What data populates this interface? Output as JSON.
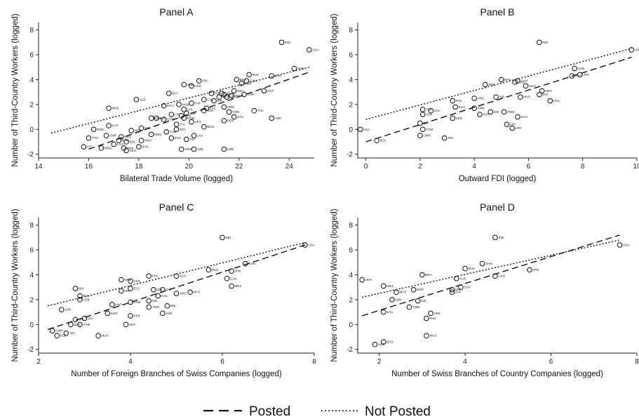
{
  "legend": {
    "posted": "Posted",
    "not_posted": "Not Posted"
  },
  "chart_data": [
    {
      "type": "scatter",
      "title": "Panel A",
      "xlabel": "Bilateral Trade Volume (logged)",
      "ylabel": "Number of Third-Country Workers (logged)",
      "xlim": [
        14,
        25
      ],
      "ylim": [
        -2.3,
        8.6
      ],
      "xticks": [
        14,
        16,
        18,
        20,
        22,
        24
      ],
      "yticks": [
        -2,
        0,
        2,
        4,
        6,
        8
      ],
      "points": [
        {
          "label": "IND",
          "x": 23.7,
          "y": 7.0
        },
        {
          "label": "USA",
          "x": 24.8,
          "y": 6.4
        },
        {
          "label": "CHN",
          "x": 24.2,
          "y": 4.9
        },
        {
          "label": "RUS",
          "x": 22.4,
          "y": 4.4
        },
        {
          "label": "JPN",
          "x": 23.3,
          "y": 4.3
        },
        {
          "label": "SGP",
          "x": 23.0,
          "y": 3.1
        },
        {
          "label": "BRA",
          "x": 21.9,
          "y": 4.0
        },
        {
          "label": "CAN",
          "x": 22.3,
          "y": 3.9
        },
        {
          "label": "AUS",
          "x": 22.1,
          "y": 3.7
        },
        {
          "label": "MEX",
          "x": 21.8,
          "y": 3.1
        },
        {
          "label": "KOR",
          "x": 22.2,
          "y": 2.8
        },
        {
          "label": "PHL",
          "x": 20.4,
          "y": 3.9
        },
        {
          "label": "SRB",
          "x": 19.8,
          "y": 3.6
        },
        {
          "label": "UKR",
          "x": 20.1,
          "y": 3.5
        },
        {
          "label": "BIH",
          "x": 19.2,
          "y": 2.9
        },
        {
          "label": "ALB",
          "x": 17.9,
          "y": 2.4
        },
        {
          "label": "ARG",
          "x": 21.5,
          "y": 2.6
        },
        {
          "label": "COL",
          "x": 20.6,
          "y": 2.4
        },
        {
          "label": "IDN",
          "x": 21.7,
          "y": 2.7
        },
        {
          "label": "MYS",
          "x": 21.4,
          "y": 2.8
        },
        {
          "label": "NZL",
          "x": 21.3,
          "y": 2.9
        },
        {
          "label": "EGY",
          "x": 21.2,
          "y": 2.6
        },
        {
          "label": "PER",
          "x": 20.9,
          "y": 2.9
        },
        {
          "label": "VNM",
          "x": 21.4,
          "y": 1.8
        },
        {
          "label": "ISR",
          "x": 21.0,
          "y": 2.3
        },
        {
          "label": "KAZ",
          "x": 20.7,
          "y": 1.7
        },
        {
          "label": "VEN",
          "x": 20.6,
          "y": 1.5
        },
        {
          "label": "MNE",
          "x": 16.8,
          "y": 1.7
        },
        {
          "label": "ECU",
          "x": 19.0,
          "y": 1.9
        },
        {
          "label": "NAM",
          "x": 19.6,
          "y": 2.0
        },
        {
          "label": "PAK",
          "x": 20.1,
          "y": 2.1
        },
        {
          "label": "TWN",
          "x": 21.6,
          "y": 1.4
        },
        {
          "label": "THA",
          "x": 22.6,
          "y": 1.5
        },
        {
          "label": "SAU",
          "x": 21.8,
          "y": 1.0
        },
        {
          "label": "ARE",
          "x": 23.3,
          "y": 0.9
        },
        {
          "label": "CHL",
          "x": 19.8,
          "y": 1.6
        },
        {
          "label": "JOR",
          "x": 19.9,
          "y": 1.3
        },
        {
          "label": "PAN",
          "x": 19.7,
          "y": 1.1
        },
        {
          "label": "BLR",
          "x": 18.7,
          "y": 0.9
        },
        {
          "label": "CRI",
          "x": 19.3,
          "y": 1.2
        },
        {
          "label": "KEN",
          "x": 18.5,
          "y": 0.9
        },
        {
          "label": "GTM",
          "x": 19.0,
          "y": 0.8
        },
        {
          "label": "DOM",
          "x": 19.8,
          "y": 0.9
        },
        {
          "label": "URY",
          "x": 20.1,
          "y": 0.6
        },
        {
          "label": "PEN",
          "x": 21.4,
          "y": 0.7
        },
        {
          "label": "CIV",
          "x": 19.5,
          "y": 0.4
        },
        {
          "label": "BGD",
          "x": 20.6,
          "y": 0.2
        },
        {
          "label": "SYR",
          "x": 16.8,
          "y": 0.3
        },
        {
          "label": "NPL",
          "x": 18.1,
          "y": 0.1
        },
        {
          "label": "ZWE",
          "x": 16.2,
          "y": 0.0
        },
        {
          "label": "MDA",
          "x": 17.7,
          "y": -0.1
        },
        {
          "label": "CMR",
          "x": 16.7,
          "y": -0.5
        },
        {
          "label": "TTO",
          "x": 16.0,
          "y": -0.7
        },
        {
          "label": "MNG",
          "x": 18.5,
          "y": -0.4
        },
        {
          "label": "TUN",
          "x": 19.1,
          "y": -0.2
        },
        {
          "label": "DZA",
          "x": 19.5,
          "y": 0.0
        },
        {
          "label": "ETH",
          "x": 19.3,
          "y": -0.7
        },
        {
          "label": "TZA",
          "x": 19.9,
          "y": -0.8
        },
        {
          "label": "LKA",
          "x": 20.2,
          "y": -0.5
        },
        {
          "label": "MUS",
          "x": 18.1,
          "y": -0.9
        },
        {
          "label": "KHM",
          "x": 17.2,
          "y": -0.9
        },
        {
          "label": "BOL",
          "x": 17.5,
          "y": -1.0
        },
        {
          "label": "LAO",
          "x": 17.0,
          "y": -1.2
        },
        {
          "label": "MKD",
          "x": 17.3,
          "y": -0.6
        },
        {
          "label": "HTI",
          "x": 15.8,
          "y": -1.4
        },
        {
          "label": "MDG",
          "x": 16.5,
          "y": -1.5
        },
        {
          "label": "BHS",
          "x": 18.0,
          "y": -1.4
        },
        {
          "label": "MWI",
          "x": 17.4,
          "y": -1.5
        },
        {
          "label": "AZE",
          "x": 20.2,
          "y": -1.6
        },
        {
          "label": "UZB",
          "x": 21.4,
          "y": -1.6
        },
        {
          "label": "ARM",
          "x": 19.7,
          "y": -1.6
        },
        {
          "label": "GEO",
          "x": 17.5,
          "y": -1.7
        }
      ],
      "posted_line": [
        [
          16.0,
          -1.6
        ],
        [
          24.8,
          4.6
        ]
      ],
      "not_posted_line": [
        [
          14.5,
          -0.3
        ],
        [
          24.8,
          5.0
        ]
      ]
    },
    {
      "type": "scatter",
      "title": "Panel B",
      "xlabel": "Outward FDI (logged)",
      "ylabel": "Number of Third-Country Workers (logged)",
      "xlim": [
        -0.3,
        10
      ],
      "ylim": [
        -2.3,
        8.6
      ],
      "xticks": [
        0,
        2,
        4,
        6,
        8,
        10
      ],
      "yticks": [
        -2,
        0,
        2,
        4,
        6,
        8
      ],
      "points": [
        {
          "label": "IND",
          "x": 6.4,
          "y": 7.0
        },
        {
          "label": "USA",
          "x": 9.8,
          "y": 6.4
        },
        {
          "label": "CHN",
          "x": 7.7,
          "y": 4.9
        },
        {
          "label": "JPN",
          "x": 7.9,
          "y": 4.4
        },
        {
          "label": "RUS",
          "x": 7.6,
          "y": 4.3
        },
        {
          "label": "BRA",
          "x": 5.0,
          "y": 4.0
        },
        {
          "label": "CAN",
          "x": 5.6,
          "y": 3.9
        },
        {
          "label": "AUS",
          "x": 5.5,
          "y": 3.8
        },
        {
          "label": "SRB",
          "x": 4.4,
          "y": 3.6
        },
        {
          "label": "UKR",
          "x": 5.9,
          "y": 3.5
        },
        {
          "label": "MEX",
          "x": 6.5,
          "y": 3.1
        },
        {
          "label": "ZAF",
          "x": 6.4,
          "y": 2.8
        },
        {
          "label": "COL",
          "x": 6.8,
          "y": 2.3
        },
        {
          "label": "MYS",
          "x": 5.7,
          "y": 2.6
        },
        {
          "label": "ARG",
          "x": 4.0,
          "y": 2.5
        },
        {
          "label": "ISR",
          "x": 4.8,
          "y": 2.6
        },
        {
          "label": "PAK",
          "x": 3.2,
          "y": 2.3
        },
        {
          "label": "ECU",
          "x": 3.3,
          "y": 1.8
        },
        {
          "label": "VNM",
          "x": 4.0,
          "y": 1.7
        },
        {
          "label": "TUR",
          "x": 2.1,
          "y": 1.6
        },
        {
          "label": "CHL",
          "x": 2.4,
          "y": 1.5
        },
        {
          "label": "JOR",
          "x": 2.1,
          "y": 1.2
        },
        {
          "label": "KEN",
          "x": 3.2,
          "y": 0.9
        },
        {
          "label": "PER",
          "x": 4.2,
          "y": 1.2
        },
        {
          "label": "IDN",
          "x": 4.6,
          "y": 1.4
        },
        {
          "label": "TWN",
          "x": 5.1,
          "y": 1.4
        },
        {
          "label": "SAU",
          "x": 5.6,
          "y": 1.0
        },
        {
          "label": "CIV",
          "x": 2.0,
          "y": 0.5
        },
        {
          "label": "GTM",
          "x": 2.1,
          "y": 0.0
        },
        {
          "label": "CRI",
          "x": 5.2,
          "y": 0.4
        },
        {
          "label": "URY",
          "x": 5.4,
          "y": 0.1
        },
        {
          "label": "CMR",
          "x": 2.0,
          "y": -0.5
        },
        {
          "label": "TZA",
          "x": 2.9,
          "y": -0.7
        },
        {
          "label": "LKA",
          "x": -0.2,
          "y": 0.0
        },
        {
          "label": "BOL",
          "x": 0.4,
          "y": -0.9
        }
      ],
      "posted_line": [
        [
          0.0,
          -1.0
        ],
        [
          9.8,
          5.8
        ]
      ],
      "not_posted_line": [
        [
          0.0,
          0.8
        ],
        [
          9.8,
          6.5
        ]
      ]
    },
    {
      "type": "scatter",
      "title": "Panel C",
      "xlabel": "Number of Foreign Branches of Swiss Companies (logged)",
      "ylabel": "Number of Third-Country Workers (logged)",
      "xlim": [
        2,
        8
      ],
      "ylim": [
        -2.3,
        8.6
      ],
      "xticks": [
        2,
        4,
        6,
        8
      ],
      "yticks": [
        -2,
        0,
        2,
        4,
        6,
        8
      ],
      "points": [
        {
          "label": "IND",
          "x": 6.0,
          "y": 7.0
        },
        {
          "label": "USA",
          "x": 7.8,
          "y": 6.4
        },
        {
          "label": "CHN",
          "x": 6.5,
          "y": 4.9
        },
        {
          "label": "RUS",
          "x": 5.7,
          "y": 4.4
        },
        {
          "label": "JPN",
          "x": 6.2,
          "y": 4.3
        },
        {
          "label": "PHL",
          "x": 4.4,
          "y": 3.9
        },
        {
          "label": "SUS",
          "x": 5.0,
          "y": 3.9
        },
        {
          "label": "SRB",
          "x": 3.8,
          "y": 3.6
        },
        {
          "label": "UKR",
          "x": 4.0,
          "y": 3.5
        },
        {
          "label": "CAN",
          "x": 6.1,
          "y": 3.7
        },
        {
          "label": "MEX",
          "x": 6.2,
          "y": 3.1
        },
        {
          "label": "BIH",
          "x": 2.8,
          "y": 2.9
        },
        {
          "label": "EGY",
          "x": 4.0,
          "y": 2.9
        },
        {
          "label": "ISR",
          "x": 3.8,
          "y": 2.7
        },
        {
          "label": "IDN",
          "x": 4.5,
          "y": 2.8
        },
        {
          "label": "ZAF",
          "x": 4.7,
          "y": 2.8
        },
        {
          "label": "PAK",
          "x": 2.9,
          "y": 2.3
        },
        {
          "label": "MYS",
          "x": 5.3,
          "y": 2.6
        },
        {
          "label": "ARG",
          "x": 5.0,
          "y": 2.5
        },
        {
          "label": "COL",
          "x": 4.6,
          "y": 2.3
        },
        {
          "label": "OZB",
          "x": 2.9,
          "y": 2.0
        },
        {
          "label": "NZL",
          "x": 4.4,
          "y": 1.9
        },
        {
          "label": "VNM",
          "x": 4.0,
          "y": 1.8
        },
        {
          "label": "KWT",
          "x": 3.6,
          "y": 1.6
        },
        {
          "label": "TWN",
          "x": 4.4,
          "y": 1.4
        },
        {
          "label": "BRL",
          "x": 4.8,
          "y": 1.5
        },
        {
          "label": "JOR",
          "x": 2.5,
          "y": 1.2
        },
        {
          "label": "KEN",
          "x": 3.5,
          "y": 0.9
        },
        {
          "label": "ARE",
          "x": 4.7,
          "y": 0.9
        },
        {
          "label": "PER",
          "x": 4.0,
          "y": 0.7
        },
        {
          "label": "CIV",
          "x": 3.0,
          "y": 0.5
        },
        {
          "label": "CRI",
          "x": 2.8,
          "y": 0.4
        },
        {
          "label": "GTM",
          "x": 2.9,
          "y": 0.0
        },
        {
          "label": "URY",
          "x": 3.9,
          "y": 0.0
        },
        {
          "label": "BLR",
          "x": 2.7,
          "y": 0.0
        },
        {
          "label": "CMR",
          "x": 2.3,
          "y": -0.5
        },
        {
          "label": "TZA",
          "x": 2.6,
          "y": -0.7
        },
        {
          "label": "BOL",
          "x": 2.4,
          "y": -0.9
        },
        {
          "label": "MUS",
          "x": 3.3,
          "y": -0.9
        }
      ],
      "posted_line": [
        [
          2.2,
          -0.4
        ],
        [
          7.8,
          6.4
        ]
      ],
      "not_posted_line": [
        [
          2.2,
          1.5
        ],
        [
          7.8,
          6.6
        ]
      ]
    },
    {
      "type": "scatter",
      "title": "Panel D",
      "xlabel": "Number of Swiss Branches of Country Companies (logged)",
      "ylabel": "Number of Third-Country Workers (logged)",
      "xlim": [
        1.5,
        8
      ],
      "ylim": [
        -2.3,
        8.6
      ],
      "xticks": [
        2,
        4,
        6,
        8
      ],
      "yticks": [
        -2,
        0,
        2,
        4,
        6,
        8
      ],
      "points": [
        {
          "label": "IND",
          "x": 4.7,
          "y": 7.0
        },
        {
          "label": "USA",
          "x": 7.6,
          "y": 6.4
        },
        {
          "label": "CHN",
          "x": 4.4,
          "y": 4.9
        },
        {
          "label": "RUS",
          "x": 4.0,
          "y": 4.5
        },
        {
          "label": "JPN",
          "x": 5.5,
          "y": 4.4
        },
        {
          "label": "BRA",
          "x": 3.0,
          "y": 4.0
        },
        {
          "label": "CAN",
          "x": 4.7,
          "y": 3.9
        },
        {
          "label": "UKR",
          "x": 1.6,
          "y": 3.6
        },
        {
          "label": "AUS",
          "x": 3.8,
          "y": 3.7
        },
        {
          "label": "MEX",
          "x": 2.1,
          "y": 3.1
        },
        {
          "label": "SGP",
          "x": 3.9,
          "y": 3.0
        },
        {
          "label": "KOR",
          "x": 2.8,
          "y": 2.8
        },
        {
          "label": "MYS",
          "x": 2.4,
          "y": 2.6
        },
        {
          "label": "ISR",
          "x": 3.7,
          "y": 2.8
        },
        {
          "label": "ZAF",
          "x": 3.7,
          "y": 2.6
        },
        {
          "label": "LBN",
          "x": 2.3,
          "y": 2.0
        },
        {
          "label": "NZL",
          "x": 2.9,
          "y": 1.9
        },
        {
          "label": "TWN",
          "x": 2.7,
          "y": 1.4
        },
        {
          "label": "SAU",
          "x": 2.1,
          "y": 1.0
        },
        {
          "label": "ARE",
          "x": 3.2,
          "y": 0.9
        },
        {
          "label": "PAN",
          "x": 3.1,
          "y": 0.5
        },
        {
          "label": "BHS",
          "x": 2.1,
          "y": -1.4
        },
        {
          "label": "AZE",
          "x": 1.9,
          "y": -1.6
        },
        {
          "label": "MUS",
          "x": 3.1,
          "y": -0.9
        }
      ],
      "posted_line": [
        [
          1.6,
          0.7
        ],
        [
          7.6,
          7.2
        ]
      ],
      "not_posted_line": [
        [
          1.6,
          2.2
        ],
        [
          7.6,
          6.8
        ]
      ]
    }
  ]
}
